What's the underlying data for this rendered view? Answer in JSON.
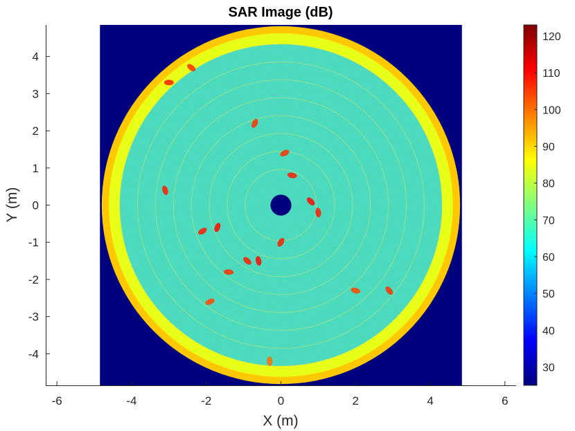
{
  "chart_data": {
    "type": "heatmap",
    "title": "SAR Image (dB)",
    "xlabel": "X (m)",
    "ylabel": "Y (m)",
    "xlim": [
      -6.3,
      6.3
    ],
    "ylim": [
      -4.85,
      4.85
    ],
    "xticks": [
      "-6",
      "-4",
      "-2",
      "0",
      "2",
      "4",
      "6"
    ],
    "yticks": [
      "4",
      "3",
      "2",
      "1",
      "0",
      "-1",
      "-2",
      "-3",
      "-4"
    ],
    "image_extent": {
      "x": [
        -4.85,
        4.85
      ],
      "y": [
        -4.85,
        4.85
      ]
    },
    "clim": [
      25,
      123
    ],
    "colormap": "jet",
    "colorbar_ticks": [
      "120",
      "110",
      "100",
      "90",
      "80",
      "70",
      "60",
      "50",
      "40",
      "30"
    ],
    "colors": {
      "outside_disc": "#00007f",
      "rim": "#ffc800",
      "background_texture": "#40e0b0",
      "scatterer": "#e02000"
    },
    "scene": {
      "disc_radius_m": 4.8,
      "center_hole_radius_m": 0.28,
      "rim_level_db": 90,
      "background_level_db": 70,
      "scatterers": [
        {
          "x": -3.0,
          "y": 3.3,
          "db": 108
        },
        {
          "x": -2.4,
          "y": 3.7,
          "db": 106
        },
        {
          "x": -3.1,
          "y": 0.4,
          "db": 108
        },
        {
          "x": -1.7,
          "y": -0.6,
          "db": 110
        },
        {
          "x": -2.1,
          "y": -0.7,
          "db": 108
        },
        {
          "x": -1.4,
          "y": -1.8,
          "db": 106
        },
        {
          "x": -0.9,
          "y": -1.5,
          "db": 108
        },
        {
          "x": -0.6,
          "y": -1.5,
          "db": 110
        },
        {
          "x": -0.7,
          "y": 2.2,
          "db": 106
        },
        {
          "x": 0.1,
          "y": 1.4,
          "db": 106
        },
        {
          "x": 0.3,
          "y": 0.8,
          "db": 108
        },
        {
          "x": 0.8,
          "y": 0.1,
          "db": 110
        },
        {
          "x": 1.0,
          "y": -0.2,
          "db": 108
        },
        {
          "x": 0.0,
          "y": -1.0,
          "db": 108
        },
        {
          "x": -1.9,
          "y": -2.6,
          "db": 104
        },
        {
          "x": 2.0,
          "y": -2.3,
          "db": 104
        },
        {
          "x": 2.9,
          "y": -2.3,
          "db": 106
        },
        {
          "x": -0.3,
          "y": -4.2,
          "db": 100
        }
      ]
    }
  }
}
